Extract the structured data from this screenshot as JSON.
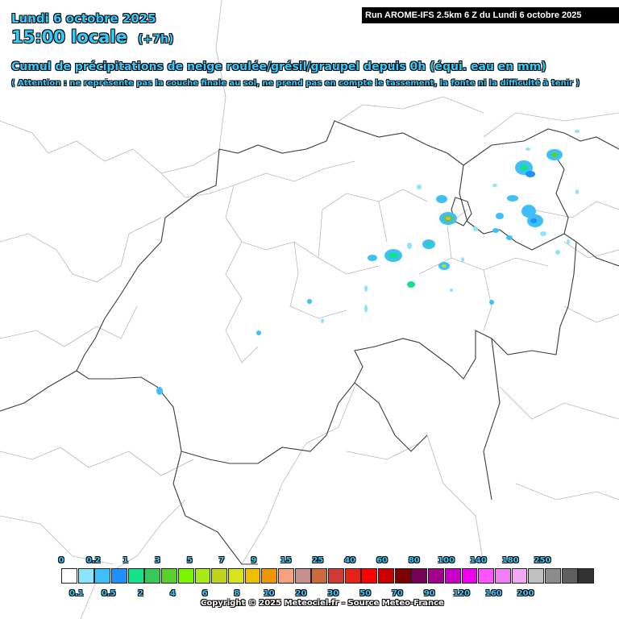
{
  "header": {
    "date": "Lundi 6 octobre 2025",
    "time": "15:00 locale",
    "offset": "(+7h)",
    "title": "Cumul de précipitations de neige roulée/grésil/graupel depuis 0h (équi. eau en mm)",
    "warning": "( Attention : ne représente pas la couche finale au sol, ne prend pas en compte le tassement, la fonte ni la difficulté à tenir )"
  },
  "run_banner": "Run AROME-IFS 2.5km 6 Z du Lundi 6 octobre 2025",
  "legend": {
    "top_labels": [
      "0",
      "0.2",
      "1",
      "3",
      "5",
      "7",
      "9",
      "15",
      "25",
      "40",
      "60",
      "80",
      "100",
      "140",
      "180",
      "250"
    ],
    "bottom_labels": [
      "0.1",
      "0.5",
      "2",
      "4",
      "6",
      "8",
      "10",
      "20",
      "30",
      "50",
      "70",
      "90",
      "120",
      "160",
      "200"
    ],
    "colors": [
      "#ffffff",
      "#8be4fb",
      "#3fbff7",
      "#1e90ff",
      "#17e08a",
      "#36c95a",
      "#5ad12a",
      "#7df500",
      "#a6ea17",
      "#bfd31a",
      "#d6e51c",
      "#f0be00",
      "#f09600",
      "#f6a17f",
      "#c88f8f",
      "#cb6a3f",
      "#ce3a37",
      "#e6231a",
      "#ff0000",
      "#c80000",
      "#7d0000",
      "#760057",
      "#a1008f",
      "#c800c8",
      "#f000f0",
      "#ff55ff",
      "#f47ff4",
      "#f6a6f6",
      "#c0c0c0",
      "#8c8c8c",
      "#5f5f5f",
      "#323232"
    ]
  },
  "copyright": "Copyright © 2025 Meteociel.fr - Source Meteo-France"
}
